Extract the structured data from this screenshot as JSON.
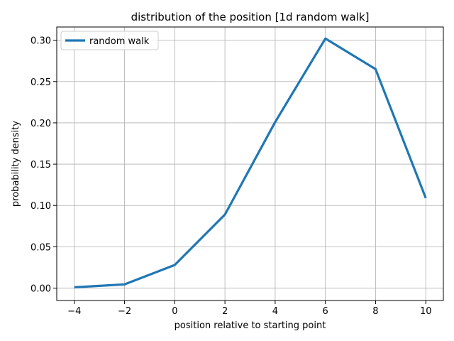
{
  "chart_data": {
    "type": "line",
    "title": "distribution of the position [1d random walk]",
    "xlabel": "position relative to starting point",
    "ylabel": "probability density",
    "xlim": [
      -4.7,
      10.7
    ],
    "ylim": [
      -0.015,
      0.316
    ],
    "xticks": [
      -4,
      -2,
      0,
      2,
      4,
      6,
      8,
      10
    ],
    "xtick_labels": [
      "−4",
      "−2",
      "0",
      "2",
      "4",
      "6",
      "8",
      "10"
    ],
    "yticks": [
      0.0,
      0.05,
      0.1,
      0.15,
      0.2,
      0.25,
      0.3
    ],
    "ytick_labels": [
      "0.00",
      "0.05",
      "0.10",
      "0.15",
      "0.20",
      "0.25",
      "0.30"
    ],
    "grid": true,
    "legend_position": "top-left",
    "series": [
      {
        "name": "random walk",
        "color": "#1f77b4",
        "x": [
          -4,
          -2,
          0,
          2,
          4,
          6,
          8,
          10
        ],
        "y": [
          0.001,
          0.0045,
          0.028,
          0.089,
          0.201,
          0.302,
          0.265,
          0.109
        ]
      }
    ]
  }
}
